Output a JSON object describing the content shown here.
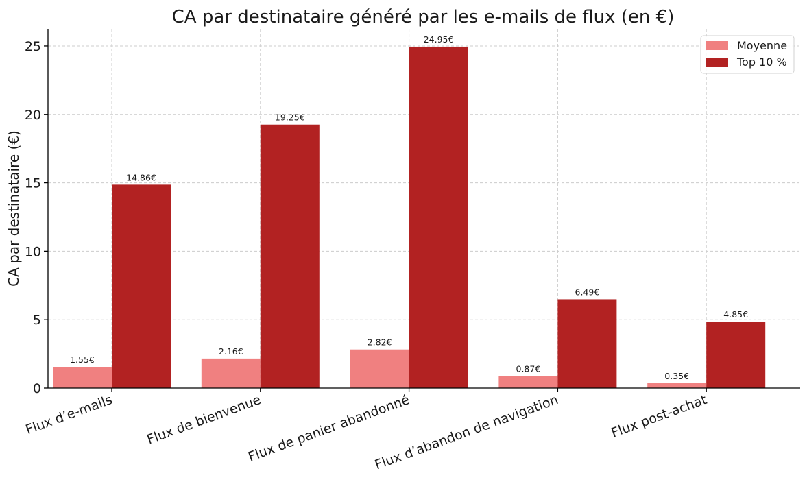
{
  "chart_data": {
    "type": "bar",
    "title": "CA par destinataire généré par les e-mails de flux (en €)",
    "xlabel": "",
    "ylabel": "CA par destinataire (€)",
    "ylim": [
      0,
      26.2
    ],
    "yticks": [
      0,
      5,
      10,
      15,
      20,
      25
    ],
    "grid": true,
    "legend_position": "top-right",
    "categories": [
      "Flux d’e-mails",
      "Flux de bienvenue",
      "Flux de panier abandonné",
      "Flux d’abandon de navigation",
      "Flux post-achat"
    ],
    "series": [
      {
        "name": "Moyenne",
        "color": "#f08080",
        "values": [
          1.55,
          2.16,
          2.82,
          0.87,
          0.35
        ],
        "labels": [
          "1.55€",
          "2.16€",
          "2.82€",
          "0.87€",
          "0.35€"
        ]
      },
      {
        "name": "Top 10 %",
        "color": "#b22222",
        "values": [
          14.86,
          19.25,
          24.95,
          6.49,
          4.85
        ],
        "labels": [
          "14.86€",
          "19.25€",
          "24.95€",
          "6.49€",
          "4.85€"
        ]
      }
    ]
  }
}
